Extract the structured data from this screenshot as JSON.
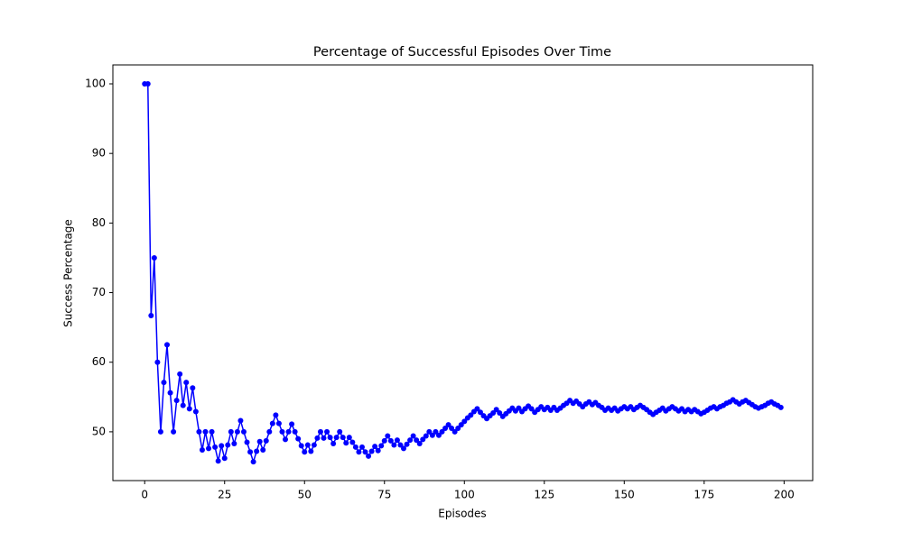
{
  "chart_data": {
    "type": "line",
    "title": "Percentage of Successful Episodes Over Time",
    "x_label": "Episodes",
    "y_label": "Success Percentage",
    "x": [
      0,
      1,
      2,
      3,
      4,
      5,
      6,
      7,
      8,
      9,
      10,
      11,
      12,
      13,
      14,
      15,
      16,
      17,
      18,
      19,
      20,
      21,
      22,
      23,
      24,
      25,
      26,
      27,
      28,
      29,
      30,
      31,
      32,
      33,
      34,
      35,
      36,
      37,
      38,
      39,
      40,
      41,
      42,
      43,
      44,
      45,
      46,
      47,
      48,
      49,
      50,
      51,
      52,
      53,
      54,
      55,
      56,
      57,
      58,
      59,
      60,
      61,
      62,
      63,
      64,
      65,
      66,
      67,
      68,
      69,
      70,
      71,
      72,
      73,
      74,
      75,
      76,
      77,
      78,
      79,
      80,
      81,
      82,
      83,
      84,
      85,
      86,
      87,
      88,
      89,
      90,
      91,
      92,
      93,
      94,
      95,
      96,
      97,
      98,
      99,
      100,
      101,
      102,
      103,
      104,
      105,
      106,
      107,
      108,
      109,
      110,
      111,
      112,
      113,
      114,
      115,
      116,
      117,
      118,
      119,
      120,
      121,
      122,
      123,
      124,
      125,
      126,
      127,
      128,
      129,
      130,
      131,
      132,
      133,
      134,
      135,
      136,
      137,
      138,
      139,
      140,
      141,
      142,
      143,
      144,
      145,
      146,
      147,
      148,
      149,
      150,
      151,
      152,
      153,
      154,
      155,
      156,
      157,
      158,
      159,
      160,
      161,
      162,
      163,
      164,
      165,
      166,
      167,
      168,
      169,
      170,
      171,
      172,
      173,
      174,
      175,
      176,
      177,
      178,
      179,
      180,
      181,
      182,
      183,
      184,
      185,
      186,
      187,
      188,
      189,
      190,
      191,
      192,
      193,
      194,
      195,
      196,
      197,
      198,
      199
    ],
    "series": [
      {
        "color": "#0000ff",
        "values": [
          100,
          100,
          66.7,
          75,
          60,
          50,
          57.1,
          62.5,
          55.6,
          50,
          54.5,
          58.3,
          53.8,
          57.1,
          53.3,
          56.3,
          52.9,
          50,
          47.4,
          50,
          47.6,
          50,
          47.8,
          45.8,
          48,
          46.2,
          48.1,
          50,
          48.3,
          50,
          51.6,
          50,
          48.5,
          47.1,
          45.7,
          47.2,
          48.6,
          47.4,
          48.7,
          50,
          51.2,
          52.4,
          51.2,
          50,
          48.9,
          50,
          51.1,
          50,
          49,
          48,
          47.1,
          48.1,
          47.2,
          48.1,
          49.1,
          50,
          49.1,
          50,
          49.2,
          48.3,
          49.2,
          50,
          49.2,
          48.4,
          49.2,
          48.5,
          47.8,
          47.1,
          47.8,
          47.1,
          46.5,
          47.2,
          47.9,
          47.3,
          48,
          48.7,
          49.4,
          48.7,
          48.1,
          48.8,
          48.1,
          47.6,
          48.2,
          48.8,
          49.4,
          48.8,
          48.3,
          48.9,
          49.4,
          50,
          49.5,
          50,
          49.5,
          50,
          50.5,
          51,
          50.5,
          50,
          50.5,
          51,
          51.5,
          52,
          52.4,
          52.9,
          53.3,
          52.8,
          52.3,
          51.9,
          52.3,
          52.7,
          53.2,
          52.7,
          52.2,
          52.6,
          53,
          53.4,
          53,
          53.4,
          52.9,
          53.3,
          53.7,
          53.3,
          52.8,
          53.2,
          53.6,
          53.2,
          53.5,
          53.1,
          53.5,
          53.1,
          53.4,
          53.8,
          54.1,
          54.5,
          54.1,
          54.4,
          54,
          53.6,
          54,
          54.3,
          53.9,
          54.2,
          53.8,
          53.5,
          53.1,
          53.4,
          53.1,
          53.4,
          53,
          53.3,
          53.6,
          53.3,
          53.6,
          53.2,
          53.5,
          53.8,
          53.5,
          53.2,
          52.8,
          52.5,
          52.8,
          53.1,
          53.4,
          53,
          53.3,
          53.6,
          53.3,
          53,
          53.3,
          52.9,
          53.2,
          52.9,
          53.2,
          52.9,
          52.6,
          52.8,
          53.1,
          53.4,
          53.6,
          53.3,
          53.6,
          53.8,
          54.1,
          54.3,
          54.6,
          54.3,
          54,
          54.3,
          54.5,
          54.2,
          53.9,
          53.6,
          53.4,
          53.6,
          53.8,
          54.1,
          54.3,
          54,
          53.8,
          53.5
        ]
      }
    ],
    "xlim": [
      -9.95,
      208.95
    ],
    "xticks": [
      0,
      25,
      50,
      75,
      100,
      125,
      150,
      175,
      200
    ],
    "ylim": [
      42.99,
      102.72
    ],
    "yticks": [
      50,
      60,
      70,
      80,
      90,
      100
    ],
    "grid": false
  }
}
